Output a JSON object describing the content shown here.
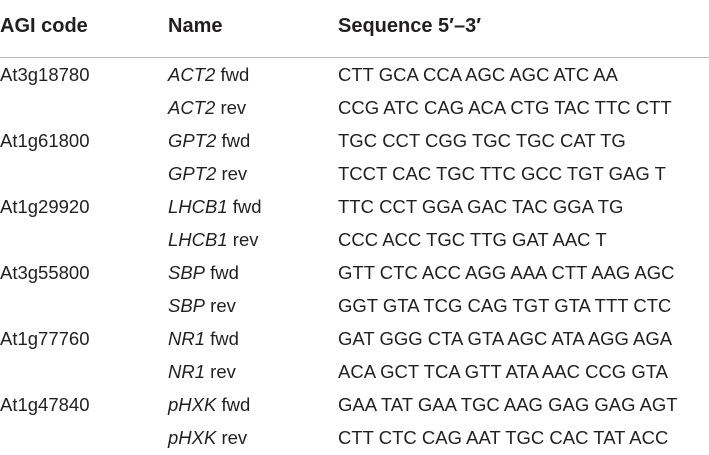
{
  "headers": {
    "agi": "AGI code",
    "name": "Name",
    "sequence": "Sequence 5′–3′"
  },
  "rows": [
    {
      "agi": "At3g18780",
      "gene": "ACT2",
      "dir": "fwd",
      "seq": "CTT GCA CCA AGC AGC ATC AA"
    },
    {
      "agi": "",
      "gene": "ACT2",
      "dir": "rev",
      "seq": "CCG ATC CAG ACA CTG TAC TTC CTT"
    },
    {
      "agi": "At1g61800",
      "gene": "GPT2",
      "dir": "fwd",
      "seq": "TGC CCT CGG TGC TGC CAT TG"
    },
    {
      "agi": "",
      "gene": "GPT2",
      "dir": "rev",
      "seq": "TCCT CAC TGC TTC GCC TGT GAG T"
    },
    {
      "agi": "At1g29920",
      "gene": "LHCB1",
      "dir": "fwd",
      "seq": "TTC CCT GGA GAC TAC GGA TG"
    },
    {
      "agi": "",
      "gene": "LHCB1",
      "dir": "rev",
      "seq": "CCC ACC TGC TTG GAT AAC T"
    },
    {
      "agi": "At3g55800",
      "gene": "SBP",
      "dir": "fwd",
      "seq": "GTT CTC ACC AGG AAA CTT AAG AGC"
    },
    {
      "agi": "",
      "gene": "SBP",
      "dir": "rev",
      "seq": "GGT GTA TCG CAG TGT GTA TTT CTC"
    },
    {
      "agi": "At1g77760",
      "gene": "NR1",
      "dir": "fwd",
      "seq": "GAT GGG CTA GTA AGC ATA AGG AGA"
    },
    {
      "agi": "",
      "gene": "NR1",
      "dir": "rev",
      "seq": "ACA GCT TCA GTT ATA AAC CCG GTA"
    },
    {
      "agi": "At1g47840",
      "gene": "pHXK",
      "dir": "fwd",
      "seq": "GAA TAT GAA TGC AAG GAG GAG AGT"
    },
    {
      "agi": "",
      "gene": "pHXK",
      "dir": "rev",
      "seq": "CTT CTC CAG AAT TGC CAC TAT ACC"
    }
  ]
}
